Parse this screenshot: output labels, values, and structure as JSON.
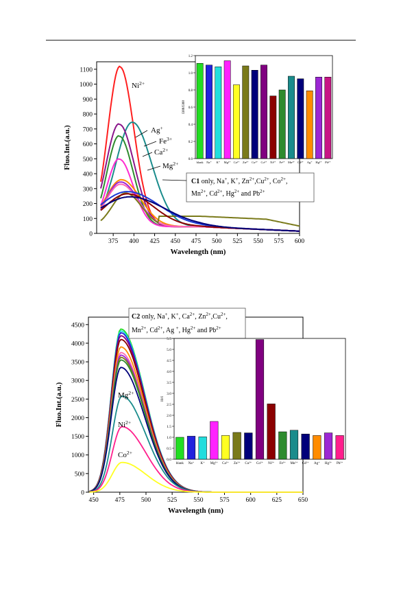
{
  "chart_data": [
    {
      "type": "line",
      "id": "top-main",
      "xlabel": "Wavelength (nm)",
      "ylabel": "Fluo.Int.(a.u.)",
      "xlim": [
        355,
        600
      ],
      "ylim": [
        0,
        1150
      ],
      "xticks": [
        375,
        400,
        425,
        450,
        475,
        500,
        525,
        550,
        575,
        600
      ],
      "yticks": [
        0,
        100,
        200,
        300,
        400,
        500,
        600,
        700,
        800,
        900,
        1000,
        1100
      ],
      "grid": false,
      "series": [
        {
          "name": "Ni2+",
          "color": "#ff1e1e",
          "peak": 383,
          "height": 1075,
          "width": 24,
          "base": 45
        },
        {
          "name": "Ag+",
          "color": "#1a8c8c",
          "peak": 398,
          "height": 700,
          "width": 33,
          "base": 45
        },
        {
          "name": "purple-high",
          "color": "#8a158a",
          "peak": 382,
          "height": 690,
          "width": 26,
          "base": 45
        },
        {
          "name": "Fe3+",
          "color": "#2e8b2e",
          "peak": 382,
          "height": 610,
          "width": 24,
          "base": 45
        },
        {
          "name": "Ca2+",
          "color": "#ff2bd0",
          "peak": 382,
          "height": 455,
          "width": 24,
          "base": 45
        },
        {
          "name": "orange",
          "color": "#ff8c00",
          "peak": 385,
          "height": 315,
          "width": 32,
          "base": 45
        },
        {
          "name": "Mg2+",
          "color": "#9c27d4",
          "peak": 384,
          "height": 300,
          "width": 30,
          "base": 45
        },
        {
          "name": "pink",
          "color": "#ff69b4",
          "peak": 384,
          "height": 285,
          "width": 30,
          "base": 45
        },
        {
          "name": "olive",
          "color": "#7a7a1a",
          "peak": 390,
          "height": 225,
          "width": 27,
          "base": 45,
          "plateau": 115
        },
        {
          "name": "blue",
          "color": "#1a3ad4",
          "peak": 392,
          "height": 235,
          "width": 55,
          "base": 45
        },
        {
          "name": "maroon",
          "color": "#8b0000",
          "peak": 392,
          "height": 220,
          "width": 45,
          "base": 45
        },
        {
          "name": "navy",
          "color": "#00007a",
          "peak": 395,
          "height": 200,
          "width": 60,
          "base": 45
        }
      ],
      "annotations": [
        {
          "text": "Ni",
          "sup": "2+"
        },
        {
          "text": "Ag",
          "sup": "+"
        },
        {
          "text": "Fe",
          "sup": "3+"
        },
        {
          "text": "Ca",
          "sup": "2+"
        },
        {
          "text": "Mg",
          "sup": "2+"
        }
      ],
      "legend_box": {
        "line1": {
          "bold": "C1",
          "text": " only, Na",
          "parts": [
            [
              "+",
              ", K"
            ],
            [
              "+",
              ", Zn"
            ],
            [
              "2+",
              ",Cu"
            ],
            [
              "2+",
              ", Co"
            ],
            [
              "2+",
              ","
            ]
          ]
        },
        "line2_parts": [
          [
            "Mn",
            "2+"
          ],
          [
            ", Cd",
            "2+"
          ],
          [
            ", Hg",
            "2+"
          ],
          [
            " and Pb",
            "2+"
          ]
        ]
      }
    },
    {
      "type": "bar",
      "id": "top-inset",
      "ylabel": "I388/I388",
      "ylim": [
        0,
        1.2
      ],
      "yticks": [
        0,
        0.2,
        0.4,
        0.6,
        0.8,
        1.0,
        1.2
      ],
      "categories": [
        "blank",
        "Na+",
        "K+",
        "Mg2+",
        "Ca2+",
        "Zn2+",
        "Cu2+",
        "Co2+",
        "Ni2+",
        "Fe3+",
        "Mn2+",
        "Cd2+",
        "Ag+",
        "Hg2+",
        "Pb2+"
      ],
      "tick_labels": [
        "blank",
        "Na⁺",
        "K⁺",
        "Mg²⁺",
        "Ca²⁺",
        "Zn²⁺",
        "Cu²⁺",
        "Co²⁺",
        "Ni²⁺",
        "Fe³⁺",
        "Mn²⁺",
        "Cd²⁺",
        "Ag⁺",
        "Hg²⁺",
        "Pb²⁺"
      ],
      "values": [
        1.11,
        1.09,
        1.07,
        1.14,
        0.86,
        1.08,
        1.03,
        1.09,
        0.73,
        0.8,
        0.96,
        0.93,
        0.79,
        0.95,
        0.95
      ],
      "colors": [
        "#22dd22",
        "#2222dd",
        "#22dddd",
        "#ff22ff",
        "#ffff22",
        "#7a7a1a",
        "#00007a",
        "#800080",
        "#8b0000",
        "#2e8b2e",
        "#1a8c8c",
        "#00007a",
        "#ff8c00",
        "#9c27d4",
        "#c71585"
      ]
    },
    {
      "type": "line",
      "id": "bottom-main",
      "xlabel": "Wavelength (nm)",
      "ylabel": "Fluo.Int.(a.u.)",
      "xlim": [
        445,
        650
      ],
      "ylim": [
        0,
        4700
      ],
      "xticks": [
        450,
        475,
        500,
        525,
        550,
        575,
        600,
        625,
        650
      ],
      "yticks": [
        0,
        500,
        1000,
        1500,
        2000,
        2500,
        3000,
        3500,
        4000,
        4500
      ],
      "grid": false,
      "series": [
        {
          "name": "green",
          "color": "#22dd22",
          "peak": 476,
          "height": 4380
        },
        {
          "name": "cyan",
          "color": "#22dddd",
          "peak": 476,
          "height": 4330
        },
        {
          "name": "blue",
          "color": "#2222dd",
          "peak": 476,
          "height": 4280
        },
        {
          "name": "purple",
          "color": "#800080",
          "peak": 476,
          "height": 4200
        },
        {
          "name": "maroon",
          "color": "#8b0000",
          "peak": 476,
          "height": 4100
        },
        {
          "name": "orange",
          "color": "#ff8c00",
          "peak": 476,
          "height": 3900
        },
        {
          "name": "pink",
          "color": "#ff69b4",
          "peak": 476,
          "height": 3750
        },
        {
          "name": "violet",
          "color": "#9c27d4",
          "peak": 476,
          "height": 3680
        },
        {
          "name": "olive",
          "color": "#7a7a1a",
          "peak": 476,
          "height": 3620
        },
        {
          "name": "darkgreen",
          "color": "#2e8b2e",
          "peak": 476,
          "height": 3550
        },
        {
          "name": "navy",
          "color": "#00007a",
          "peak": 476,
          "height": 3350
        },
        {
          "name": "Mg2+",
          "color": "#1a8c8c",
          "peak": 477,
          "height": 2580
        },
        {
          "name": "Ni2+",
          "color": "#ff1e8c",
          "peak": 477,
          "height": 1760
        },
        {
          "name": "Co2+",
          "color": "#ffff22",
          "peak": 477,
          "height": 800
        }
      ],
      "annotations": [
        {
          "text": "Mg",
          "sup": "2+"
        },
        {
          "text": "Ni",
          "sup": "2+"
        },
        {
          "text": "Co",
          "sup": "2+"
        }
      ],
      "legend_box": {
        "line1_parts": [
          [
            "C2",
            ""
          ],
          [
            " only, Na",
            "+"
          ],
          [
            ", K",
            "+"
          ],
          [
            ", Ca",
            "2+"
          ],
          [
            ", Zn",
            "2+"
          ],
          [
            ",Cu",
            "2+"
          ],
          [
            ",",
            ""
          ]
        ],
        "line2_parts": [
          [
            "Mn",
            "2+"
          ],
          [
            ", Cd",
            "2+"
          ],
          [
            ", Ag ",
            "+"
          ],
          [
            ", Hg",
            "2+"
          ],
          [
            " and Pb",
            "2+"
          ]
        ]
      }
    },
    {
      "type": "bar",
      "id": "bottom-inset",
      "ylabel": "I0/I",
      "ylim": [
        0,
        5.5
      ],
      "yticks": [
        0.0,
        0.5,
        1.0,
        1.5,
        2.0,
        2.5,
        3.0,
        3.5,
        4.0,
        4.5,
        5.0,
        5.5
      ],
      "categories": [
        "blank",
        "Na+",
        "K+",
        "Mg2+",
        "Ca2+",
        "Zn2+",
        "Cu2+",
        "Co2+",
        "Ni2+",
        "Fe3+",
        "Mn2+",
        "Cd2+",
        "Ag+",
        "Hg2+",
        "Pb2+"
      ],
      "tick_labels": [
        "blank",
        "Na⁺",
        "K⁺",
        "Mg²⁺",
        "Ca²⁺",
        "Zn²⁺",
        "Cu²⁺",
        "Co²⁺",
        "Ni²⁺",
        "Fe³⁺",
        "Mn²⁺",
        "Cd²⁺",
        "Ag⁺",
        "Hg²⁺",
        "Pb²⁺"
      ],
      "values": [
        1.0,
        1.05,
        1.02,
        1.72,
        1.08,
        1.22,
        1.2,
        5.45,
        2.52,
        1.25,
        1.32,
        1.15,
        1.08,
        1.2,
        1.08
      ],
      "colors": [
        "#22dd22",
        "#2222dd",
        "#22dddd",
        "#ff22ff",
        "#ffff22",
        "#7a7a1a",
        "#00007a",
        "#800080",
        "#8b0000",
        "#2e8b2e",
        "#1a8c8c",
        "#00007a",
        "#ff8c00",
        "#9c27d4",
        "#ff1e8c"
      ]
    }
  ]
}
